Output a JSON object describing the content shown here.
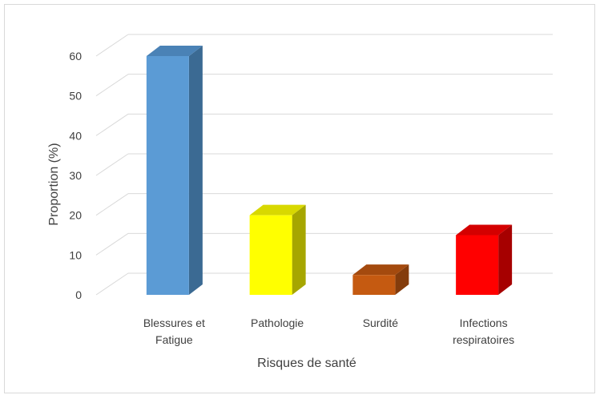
{
  "chart_data": {
    "type": "bar",
    "title": "",
    "xlabel": "Risques de santé",
    "ylabel": "Proportion (%)",
    "ylim": [
      0,
      60
    ],
    "yticks": [
      0,
      10,
      20,
      30,
      40,
      50,
      60
    ],
    "grid": true,
    "three_d": true,
    "categories": [
      [
        "Blessures et",
        "Fatigue"
      ],
      [
        "Pathologie"
      ],
      [
        "Surdité"
      ],
      [
        "Infections",
        "respiratoires"
      ]
    ],
    "values": [
      60,
      20,
      5,
      15
    ],
    "colors": [
      {
        "front": "#5B9BD5",
        "side": "#3B6A93",
        "top": "#4A82B6"
      },
      {
        "front": "#FFFF00",
        "side": "#A6A600",
        "top": "#D8D800"
      },
      {
        "front": "#C55A11",
        "side": "#843C0C",
        "top": "#A44A0E"
      },
      {
        "front": "#FF0000",
        "side": "#A60000",
        "top": "#D40000"
      }
    ]
  }
}
